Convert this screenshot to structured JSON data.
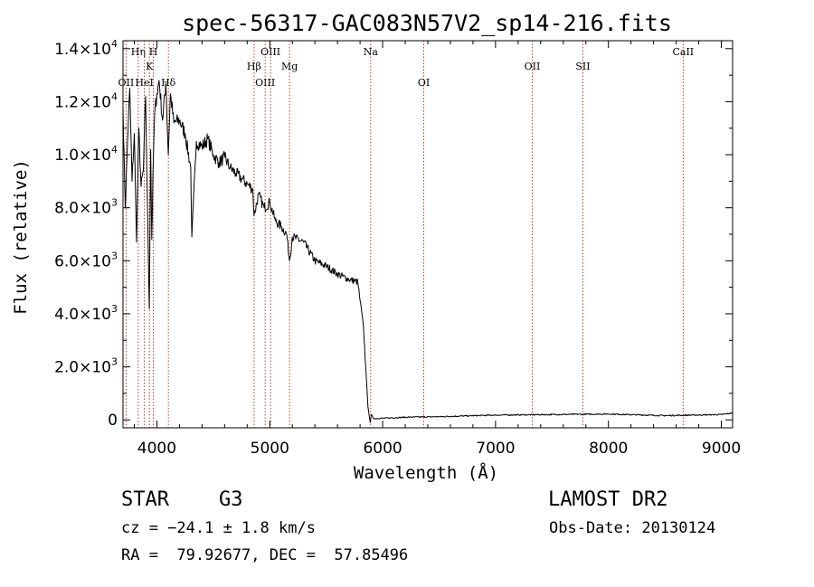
{
  "chart_data": {
    "type": "line",
    "title": "spec-56317-GAC083N57V2_sp14-216.fits",
    "xlabel": "Wavelength (Å)",
    "ylabel": "Flux (relative)",
    "xlim": [
      3700,
      9100
    ],
    "ylim": [
      -300,
      14300
    ],
    "x_ticks": [
      4000,
      5000,
      6000,
      7000,
      8000,
      9000
    ],
    "x_tick_labels": [
      "4000",
      "5000",
      "6000",
      "7000",
      "8000",
      "9000"
    ],
    "y_ticks": [
      {
        "value": 0,
        "mant": "0",
        "exp": ""
      },
      {
        "value": 2000,
        "mant": "2.0×10",
        "exp": "3"
      },
      {
        "value": 4000,
        "mant": "4.0×10",
        "exp": "3"
      },
      {
        "value": 6000,
        "mant": "6.0×10",
        "exp": "3"
      },
      {
        "value": 8000,
        "mant": "8.0×10",
        "exp": "3"
      },
      {
        "value": 10000,
        "mant": "1.0×10",
        "exp": "4"
      },
      {
        "value": 12000,
        "mant": "1.2×10",
        "exp": "4"
      },
      {
        "value": 14000,
        "mant": "1.4×10",
        "exp": "4"
      }
    ],
    "grid": false,
    "series": [
      {
        "x": [
          3700,
          3720,
          3740,
          3760,
          3780,
          3800,
          3820,
          3840,
          3860,
          3880,
          3900,
          3920,
          3933,
          3945,
          3955,
          3968,
          3980,
          4000,
          4020,
          4050,
          4080,
          4101,
          4120,
          4150,
          4200,
          4250,
          4300,
          4310,
          4350,
          4400,
          4450,
          4500,
          4550,
          4600,
          4650,
          4700,
          4750,
          4800,
          4850,
          4861,
          4900,
          4950,
          5000,
          5050,
          5100,
          5150,
          5175,
          5200,
          5300,
          5400,
          5500,
          5600,
          5700,
          5780,
          5800,
          5830,
          5850,
          5870,
          5890,
          5900,
          5920,
          6000,
          6200,
          6500,
          7000,
          7500,
          8000,
          8500,
          9000,
          9100
        ],
        "y": [
          11800,
          8000,
          10500,
          12500,
          9000,
          10800,
          6700,
          11000,
          8800,
          9400,
          12200,
          7200,
          4200,
          10200,
          6800,
          9800,
          11500,
          12300,
          12800,
          11300,
          12700,
          10000,
          12300,
          11200,
          11300,
          10800,
          9500,
          6900,
          10500,
          10300,
          10600,
          10000,
          9700,
          9900,
          9500,
          9300,
          9100,
          8900,
          8700,
          7700,
          8500,
          8000,
          8200,
          7500,
          7300,
          7000,
          6000,
          6900,
          6700,
          6000,
          5800,
          5500,
          5300,
          5200,
          4500,
          3500,
          2000,
          500,
          -100,
          200,
          50,
          60,
          100,
          120,
          180,
          200,
          220,
          160,
          200,
          260
        ]
      }
    ],
    "lines": [
      {
        "name": "OII",
        "x": 3727,
        "row": 4
      },
      {
        "name": "Hη",
        "x": 3835,
        "row": 1
      },
      {
        "name": "HeI",
        "x": 3889,
        "row": 4
      },
      {
        "name": "K",
        "x": 3934,
        "row": 2
      },
      {
        "name": "H",
        "x": 3969,
        "row": 1
      },
      {
        "name": "Hδ",
        "x": 4102,
        "row": 4
      },
      {
        "name": "Hβ",
        "x": 4861,
        "row": 3
      },
      {
        "name": "OIII",
        "x": 4959,
        "row": 4
      },
      {
        "name": "OIII",
        "x": 5007,
        "row": 1
      },
      {
        "name": "Mg",
        "x": 5175,
        "row": 3
      },
      {
        "name": "Na",
        "x": 5894,
        "row": 1
      },
      {
        "name": "OI",
        "x": 6364,
        "row": 4
      },
      {
        "name": "OII",
        "x": 7325,
        "row": 3
      },
      {
        "name": "SII",
        "x": 7774,
        "row": 3
      },
      {
        "name": "CaII",
        "x": 8662,
        "row": 1
      }
    ]
  },
  "info": {
    "object_class": "STAR",
    "subclass": "G3",
    "survey": "LAMOST DR2",
    "cz": "cz = −24.1 ± 1.8 km/s",
    "obs_date": "Obs-Date: 20130124",
    "coords": "RA =  79.92677, DEC =  57.85496"
  }
}
